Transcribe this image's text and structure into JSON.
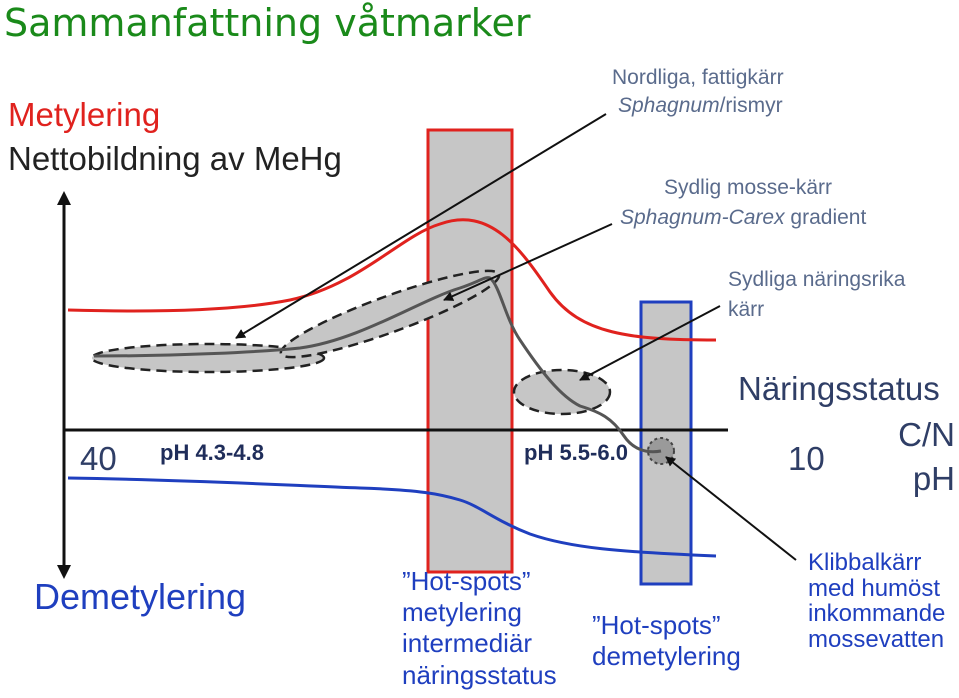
{
  "title": "Sammanfattning våtmarker",
  "y_axis": {
    "top_label": "Metylering",
    "subtitle": "Nettobildning av MeHg",
    "bottom_label": "Demetylering"
  },
  "x_axis": {
    "label": "Näringsstatus",
    "units": [
      "C/N",
      "pH"
    ],
    "left_value": "40",
    "right_value": "10",
    "ph_low": "pH 4.3-4.8",
    "ph_mid": "pH 5.5-6.0"
  },
  "callouts": {
    "nordliga_line1": "Nordliga, fattigkärr",
    "nordliga_italic": "Sphagnum",
    "nordliga_rest": "/rismyr",
    "sydlig_line1": "Sydlig mosse-kärr",
    "sydlig_italic": "Sphagnum-Carex",
    "sydlig_rest": " gradient",
    "naringsrika_line1": "Sydliga näringsrika",
    "naringsrika_line2": "kärr",
    "klibbal_line1": "Klibbalkärr",
    "klibbal_line2": "med humöst",
    "klibbal_line3": "inkommande",
    "klibbal_line4": "mossevatten"
  },
  "hotspots": {
    "met_line1": "”Hot-spots”",
    "met_line2": "metylering",
    "met_line3": "intermediär",
    "met_line4": "näringsstatus",
    "demet_line1": "”Hot-spots”",
    "demet_line2": "demetylering"
  },
  "colors": {
    "title": "#1a8a1a",
    "methylation": "#e0221e",
    "demethylation": "#1f3fbf",
    "curve": "#555555",
    "band_fill": "#c6c6c6"
  }
}
